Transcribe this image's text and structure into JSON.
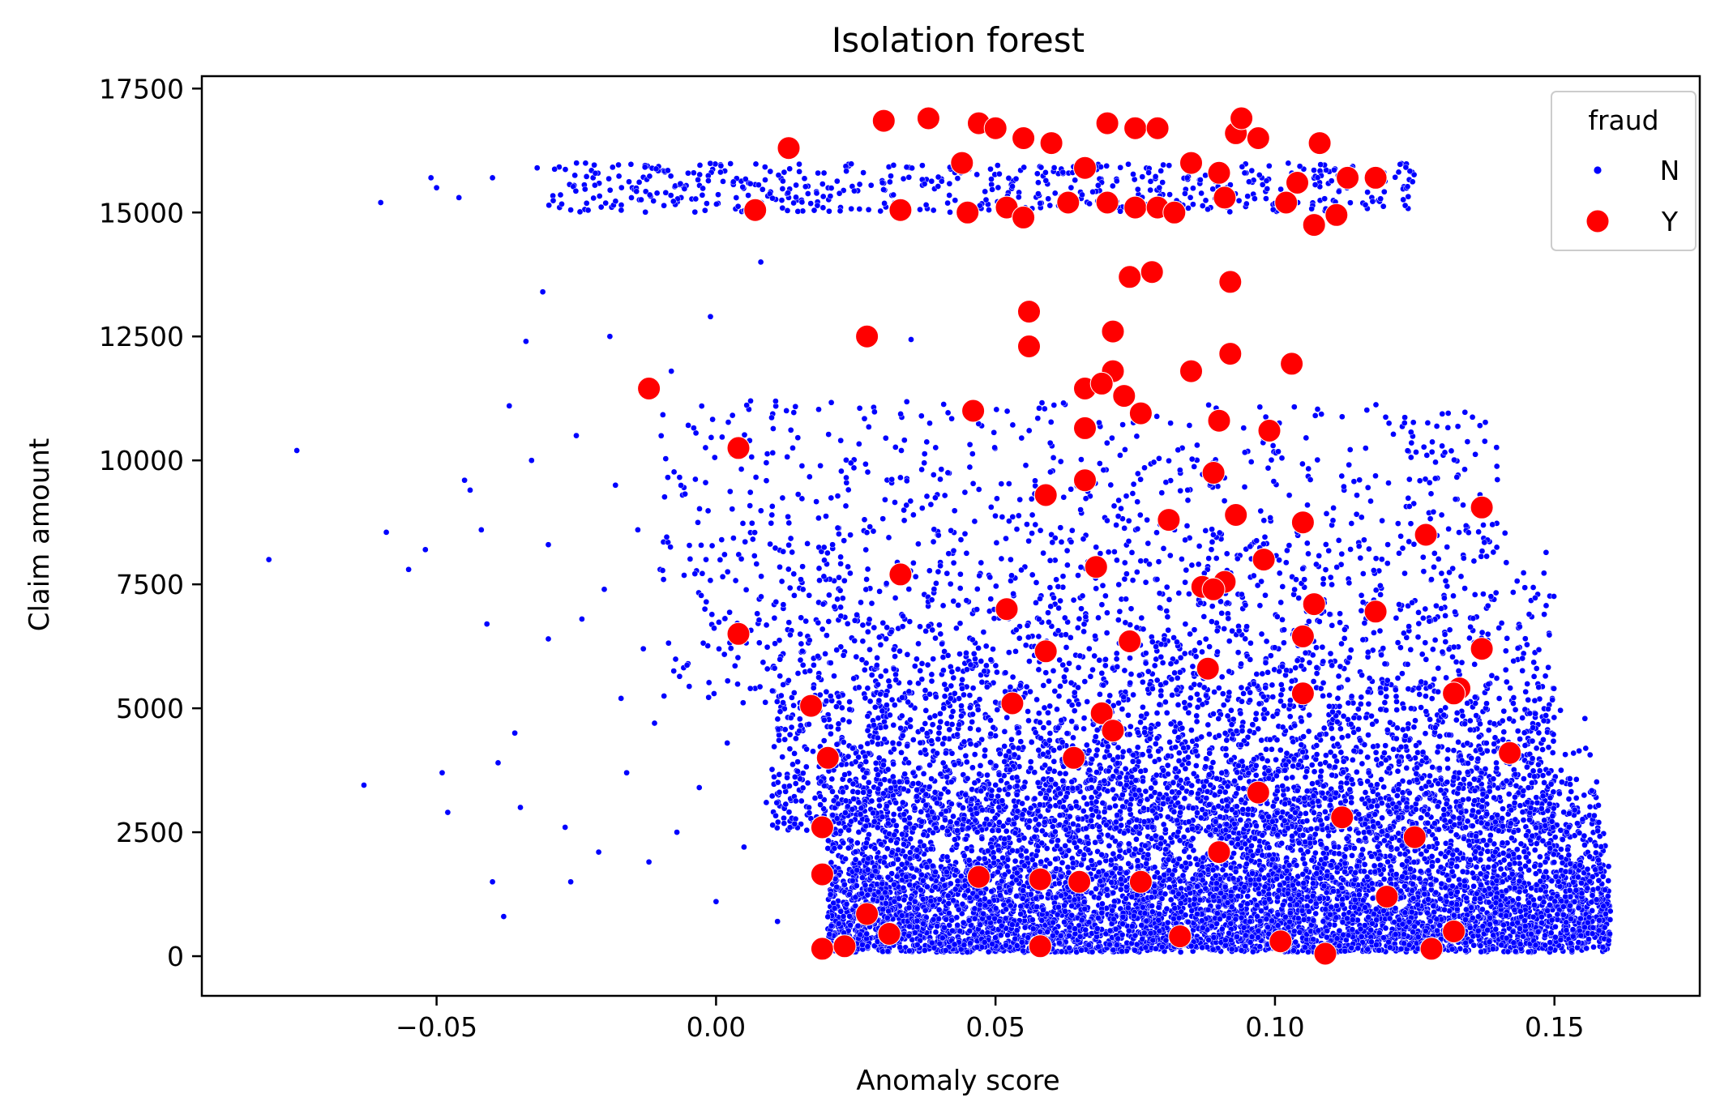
{
  "chart_data": {
    "type": "scatter",
    "title": "Isolation forest",
    "xlabel": "Anomaly score",
    "ylabel": "Claim amount",
    "xlim": [
      -0.092,
      0.176
    ],
    "ylim": [
      -800,
      17750
    ],
    "xticks": [
      -0.05,
      0.0,
      0.05,
      0.1,
      0.15
    ],
    "xtick_labels": [
      "−0.05",
      "0.00",
      "0.05",
      "0.10",
      "0.15"
    ],
    "yticks": [
      0,
      2500,
      5000,
      7500,
      10000,
      12500,
      15000,
      17500
    ],
    "ytick_labels": [
      "0",
      "2500",
      "5000",
      "7500",
      "10000",
      "12500",
      "15000",
      "17500"
    ],
    "grid": false,
    "legend": {
      "title": "fraud",
      "placement": "top-right",
      "entries": [
        {
          "label": "N",
          "color": "#0000ff",
          "marker": "small-dot"
        },
        {
          "label": "Y",
          "color": "#ff0000",
          "marker": "large-dot"
        }
      ]
    },
    "series": [
      {
        "name": "N",
        "color": "#0000ff",
        "points": [
          [
            -0.08,
            8000
          ],
          [
            -0.075,
            10200
          ],
          [
            -0.063,
            3450
          ],
          [
            -0.06,
            15200
          ],
          [
            -0.059,
            8550
          ],
          [
            -0.055,
            7800
          ],
          [
            -0.052,
            8200
          ],
          [
            -0.051,
            15700
          ],
          [
            -0.05,
            15500
          ],
          [
            -0.049,
            3700
          ],
          [
            -0.048,
            2900
          ],
          [
            -0.046,
            15300
          ],
          [
            -0.045,
            9600
          ],
          [
            -0.044,
            9400
          ],
          [
            -0.042,
            8600
          ],
          [
            -0.041,
            6700
          ],
          [
            -0.04,
            15700
          ],
          [
            -0.04,
            1500
          ],
          [
            -0.039,
            3900
          ],
          [
            -0.038,
            800
          ],
          [
            -0.037,
            11100
          ],
          [
            -0.036,
            4500
          ],
          [
            -0.035,
            3000
          ],
          [
            -0.034,
            12400
          ],
          [
            -0.033,
            10000
          ],
          [
            -0.032,
            15900
          ],
          [
            -0.031,
            13400
          ],
          [
            -0.03,
            8300
          ],
          [
            -0.03,
            6400
          ],
          [
            -0.028,
            15100
          ],
          [
            -0.027,
            2600
          ],
          [
            -0.026,
            1500
          ],
          [
            -0.025,
            10500
          ],
          [
            -0.024,
            6800
          ],
          [
            -0.022,
            15700
          ],
          [
            -0.021,
            2100
          ],
          [
            -0.02,
            7400
          ],
          [
            -0.019,
            12500
          ],
          [
            -0.018,
            9500
          ],
          [
            -0.017,
            5200
          ],
          [
            -0.016,
            3700
          ],
          [
            -0.015,
            15500
          ],
          [
            -0.014,
            8600
          ],
          [
            -0.013,
            6200
          ],
          [
            -0.012,
            1900
          ],
          [
            -0.011,
            4700
          ],
          [
            -0.01,
            7800
          ],
          [
            -0.009,
            15400
          ],
          [
            -0.008,
            11800
          ],
          [
            -0.007,
            2500
          ],
          [
            -0.006,
            9300
          ],
          [
            -0.005,
            5900
          ],
          [
            -0.004,
            15800
          ],
          [
            -0.003,
            3400
          ],
          [
            -0.002,
            7000
          ],
          [
            -0.001,
            12900
          ],
          [
            0.0,
            1100
          ],
          [
            0.001,
            8400
          ],
          [
            0.002,
            4300
          ],
          [
            0.003,
            15600
          ],
          [
            0.004,
            6600
          ],
          [
            0.005,
            2200
          ],
          [
            0.006,
            10400
          ],
          [
            0.007,
            5400
          ],
          [
            0.008,
            14000
          ],
          [
            0.009,
            3100
          ],
          [
            0.01,
            8900
          ],
          [
            0.011,
            700
          ],
          [
            0.012,
            6100
          ],
          [
            0.013,
            15300
          ]
        ],
        "generated_cloud": {
          "count": 11000,
          "x_range": [
            0.0,
            0.162
          ],
          "y_range": [
            60,
            16000
          ],
          "note": "dense cloud"
        }
      },
      {
        "name": "Y",
        "color": "#ff0000",
        "points": [
          [
            0.013,
            16300
          ],
          [
            0.03,
            16850
          ],
          [
            0.038,
            16900
          ],
          [
            0.047,
            16800
          ],
          [
            0.05,
            16700
          ],
          [
            0.055,
            16500
          ],
          [
            0.06,
            16400
          ],
          [
            0.07,
            16800
          ],
          [
            0.075,
            16700
          ],
          [
            0.079,
            16700
          ],
          [
            0.093,
            16600
          ],
          [
            0.094,
            16900
          ],
          [
            0.097,
            16500
          ],
          [
            0.108,
            16400
          ],
          [
            0.044,
            16000
          ],
          [
            0.066,
            15900
          ],
          [
            0.085,
            16000
          ],
          [
            0.09,
            15800
          ],
          [
            0.104,
            15600
          ],
          [
            0.113,
            15700
          ],
          [
            0.118,
            15700
          ],
          [
            0.007,
            15050
          ],
          [
            0.033,
            15050
          ],
          [
            0.045,
            15000
          ],
          [
            0.052,
            15100
          ],
          [
            0.055,
            14900
          ],
          [
            0.063,
            15200
          ],
          [
            0.07,
            15200
          ],
          [
            0.075,
            15100
          ],
          [
            0.079,
            15100
          ],
          [
            0.082,
            15000
          ],
          [
            0.091,
            15300
          ],
          [
            0.102,
            15200
          ],
          [
            0.107,
            14750
          ],
          [
            0.111,
            14950
          ],
          [
            0.074,
            13700
          ],
          [
            0.078,
            13800
          ],
          [
            0.092,
            13600
          ],
          [
            0.056,
            13000
          ],
          [
            0.027,
            12500
          ],
          [
            0.056,
            12300
          ],
          [
            0.071,
            12600
          ],
          [
            0.092,
            12150
          ],
          [
            0.103,
            11950
          ],
          [
            0.071,
            11800
          ],
          [
            0.085,
            11800
          ],
          [
            -0.012,
            11450
          ],
          [
            0.066,
            11450
          ],
          [
            0.069,
            11550
          ],
          [
            0.073,
            11300
          ],
          [
            0.046,
            11000
          ],
          [
            0.076,
            10950
          ],
          [
            0.09,
            10800
          ],
          [
            0.066,
            10650
          ],
          [
            0.099,
            10600
          ],
          [
            0.004,
            10250
          ],
          [
            0.089,
            9750
          ],
          [
            0.059,
            9300
          ],
          [
            0.066,
            9600
          ],
          [
            0.137,
            9050
          ],
          [
            0.081,
            8800
          ],
          [
            0.093,
            8900
          ],
          [
            0.105,
            8750
          ],
          [
            0.127,
            8500
          ],
          [
            0.068,
            7850
          ],
          [
            0.033,
            7700
          ],
          [
            0.087,
            7450
          ],
          [
            0.091,
            7550
          ],
          [
            0.098,
            8000
          ],
          [
            0.052,
            7000
          ],
          [
            0.107,
            7100
          ],
          [
            0.118,
            6950
          ],
          [
            0.089,
            7400
          ],
          [
            0.004,
            6500
          ],
          [
            0.059,
            6150
          ],
          [
            0.074,
            6350
          ],
          [
            0.105,
            6450
          ],
          [
            0.137,
            6200
          ],
          [
            0.017,
            5050
          ],
          [
            0.053,
            5100
          ],
          [
            0.069,
            4900
          ],
          [
            0.071,
            4550
          ],
          [
            0.088,
            5800
          ],
          [
            0.105,
            5300
          ],
          [
            0.133,
            5400
          ],
          [
            0.132,
            5300
          ],
          [
            0.02,
            4000
          ],
          [
            0.064,
            4000
          ],
          [
            0.019,
            2600
          ],
          [
            0.047,
            1600
          ],
          [
            0.058,
            1550
          ],
          [
            0.065,
            1500
          ],
          [
            0.019,
            1650
          ],
          [
            0.027,
            850
          ],
          [
            0.031,
            450
          ],
          [
            0.019,
            150
          ],
          [
            0.023,
            200
          ],
          [
            0.058,
            200
          ],
          [
            0.101,
            300
          ],
          [
            0.109,
            50
          ],
          [
            0.128,
            150
          ],
          [
            0.132,
            500
          ],
          [
            0.09,
            2100
          ],
          [
            0.076,
            1500
          ],
          [
            0.12,
            1200
          ],
          [
            0.142,
            4100
          ],
          [
            0.097,
            3300
          ],
          [
            0.112,
            2800
          ],
          [
            0.125,
            2400
          ],
          [
            0.083,
            400
          ]
        ]
      }
    ]
  }
}
